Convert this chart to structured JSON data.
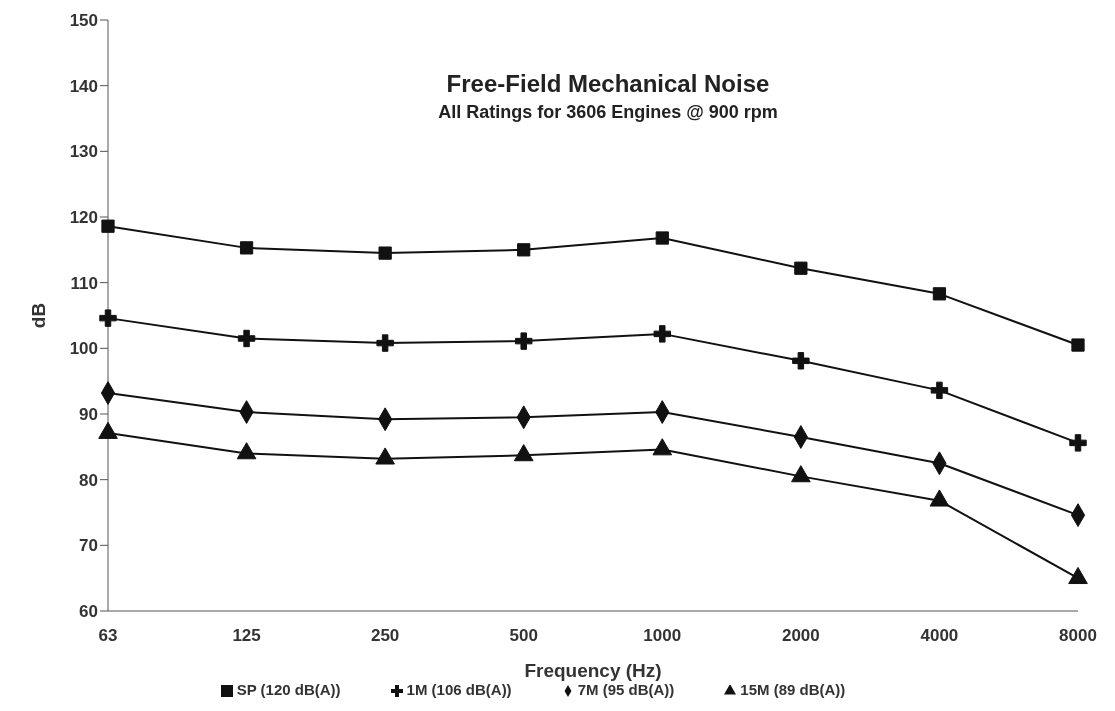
{
  "chart_data": {
    "type": "line",
    "title": "Free-Field Mechanical Noise",
    "subtitle": "All Ratings for 3606 Engines @ 900 rpm",
    "xlabel": "Frequency (Hz)",
    "ylabel": "dB",
    "categories": [
      "63",
      "125",
      "250",
      "500",
      "1000",
      "2000",
      "4000",
      "8000"
    ],
    "series": [
      {
        "name": "SP (120 dB(A))",
        "color": "#111111",
        "marker": "square",
        "values": [
          118.6,
          115.3,
          114.5,
          115,
          116.8,
          112.2,
          108.3,
          100.5
        ]
      },
      {
        "name": "1M (106 dB(A))",
        "color": "#111111",
        "marker": "cross",
        "values": [
          104.6,
          101.5,
          100.8,
          101.1,
          102.2,
          98.1,
          93.6,
          85.6
        ]
      },
      {
        "name": "7M (95 dB(A))",
        "color": "#111111",
        "marker": "diamond",
        "values": [
          93.2,
          90.3,
          89.2,
          89.5,
          90.3,
          86.5,
          82.5,
          74.6
        ]
      },
      {
        "name": "15M (89 dB(A))",
        "color": "#111111",
        "marker": "triangle",
        "values": [
          87.1,
          84,
          83.2,
          83.7,
          84.6,
          80.5,
          76.8,
          65
        ]
      }
    ],
    "ylim": [
      60,
      150
    ],
    "yticks": [
      60,
      70,
      80,
      90,
      100,
      110,
      120,
      130,
      140,
      150
    ],
    "grid": false,
    "legend": "bottom",
    "line_style": "solid"
  }
}
